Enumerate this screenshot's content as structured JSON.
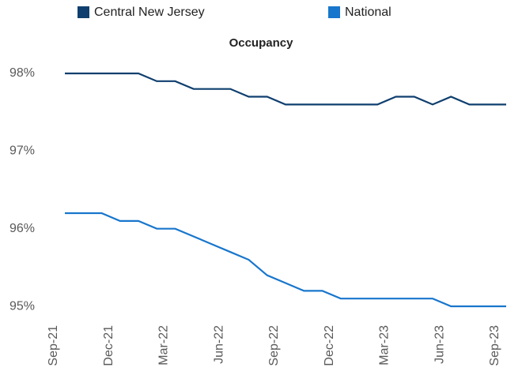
{
  "chart_data": {
    "type": "line",
    "title": "Occupancy",
    "categories": [
      "Sep-21",
      null,
      null,
      "Dec-21",
      null,
      null,
      "Mar-22",
      null,
      null,
      "Jun-22",
      null,
      null,
      "Sep-22",
      null,
      null,
      "Dec-22",
      null,
      null,
      "Mar-23",
      null,
      null,
      "Jun-23",
      null,
      null,
      "Sep-23"
    ],
    "series": [
      {
        "name": "Central New Jersey",
        "color": "#0f3f6e",
        "values": [
          98,
          98,
          98,
          98,
          98,
          97.9,
          97.9,
          97.8,
          97.8,
          97.8,
          97.7,
          97.7,
          97.6,
          97.6,
          97.6,
          97.6,
          97.6,
          97.6,
          97.7,
          97.7,
          97.6,
          97.7,
          97.6,
          97.6,
          97.6
        ]
      },
      {
        "name": "National",
        "color": "#1876cc",
        "values": [
          96.2,
          96.2,
          96.2,
          96.1,
          96.1,
          96.0,
          96.0,
          95.9,
          95.8,
          95.7,
          95.6,
          95.4,
          95.3,
          95.2,
          95.2,
          95.1,
          95.1,
          95.1,
          95.1,
          95.1,
          95.1,
          95.0,
          95.0,
          95.0,
          95.0
        ]
      }
    ],
    "ylim": [
      94.8,
      98.3
    ],
    "yticks": [
      {
        "value": 95,
        "label": "95%"
      },
      {
        "value": 96,
        "label": "96%"
      },
      {
        "value": 97,
        "label": "97%"
      },
      {
        "value": 98,
        "label": "98%"
      }
    ],
    "grid": false,
    "legend": "top"
  }
}
